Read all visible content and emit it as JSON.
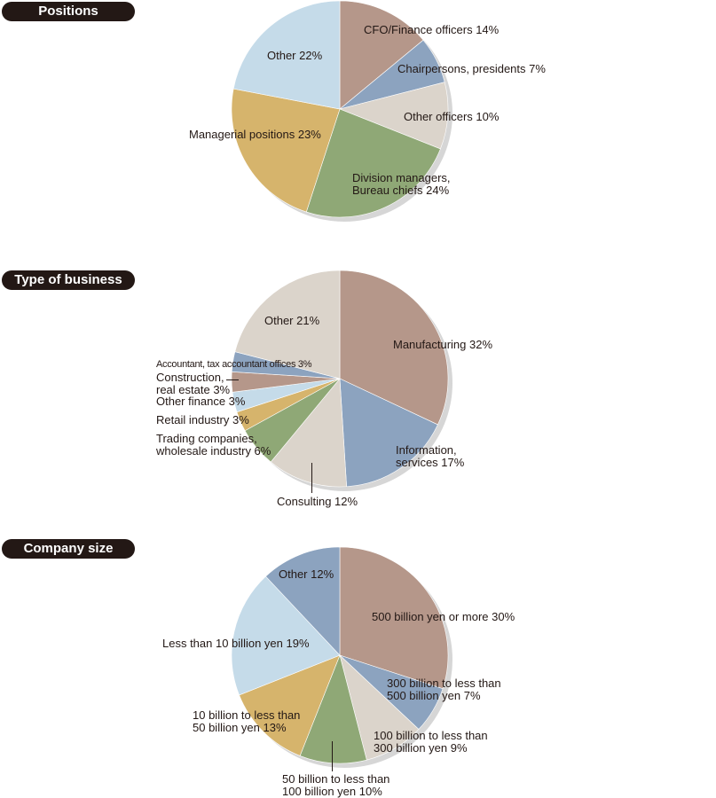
{
  "colors": {
    "brown": "#b5978a",
    "blue": "#8ca3bf",
    "light": "#dbd4cb",
    "green": "#8fa876",
    "tan": "#d6b46c",
    "sky": "#c5dbe9",
    "shadow": "#d6d6d6"
  },
  "chart_data": [
    {
      "type": "pie",
      "title": "Positions",
      "slices": [
        {
          "label": "CFO/Finance officers 14%",
          "value": 14,
          "color": "brown"
        },
        {
          "label": "Chairpersons, presidents 7%",
          "value": 7,
          "color": "blue"
        },
        {
          "label": "Other officers 10%",
          "value": 10,
          "color": "light"
        },
        {
          "label": "Division managers,\nBureau chiefs  24%",
          "value": 24,
          "color": "green"
        },
        {
          "label": "Managerial positions 23%",
          "value": 23,
          "color": "tan"
        },
        {
          "label": "Other 22%",
          "value": 22,
          "color": "sky"
        }
      ]
    },
    {
      "type": "pie",
      "title": "Type of business",
      "slices": [
        {
          "label": "Manufacturing 32%",
          "value": 32,
          "color": "brown"
        },
        {
          "label": "Information,\nservices 17%",
          "value": 17,
          "color": "blue"
        },
        {
          "label": "Consulting 12%",
          "value": 12,
          "color": "light"
        },
        {
          "label": "Trading companies,\nwholesale industry 6%",
          "value": 6,
          "color": "green"
        },
        {
          "label": "Retail industry 3%",
          "value": 3,
          "color": "tan"
        },
        {
          "label": "Other finance 3%",
          "value": 3,
          "color": "sky"
        },
        {
          "label": "Construction,\nreal estate 3%",
          "value": 3,
          "color": "brown"
        },
        {
          "label": "Accountant, tax accountant offices 3%",
          "value": 3,
          "color": "blue"
        },
        {
          "label": "Other 21%",
          "value": 21,
          "color": "light"
        }
      ]
    },
    {
      "type": "pie",
      "title": "Company size",
      "slices": [
        {
          "label": "500 billion yen or more 30%",
          "value": 30,
          "color": "brown"
        },
        {
          "label": "300 billion to less than\n500 billion yen 7%",
          "value": 7,
          "color": "blue"
        },
        {
          "label": "100 billion to less than\n300 billion yen 9%",
          "value": 9,
          "color": "light"
        },
        {
          "label": "50 billion to less than\n100 billion yen 10%",
          "value": 10,
          "color": "green"
        },
        {
          "label": "10 billion to less than\n50 billion yen 13%",
          "value": 13,
          "color": "tan"
        },
        {
          "label": "Less than 10 billion yen 19%",
          "value": 19,
          "color": "sky"
        },
        {
          "label": "Other 12%",
          "value": 12,
          "color": "blue"
        }
      ]
    }
  ]
}
